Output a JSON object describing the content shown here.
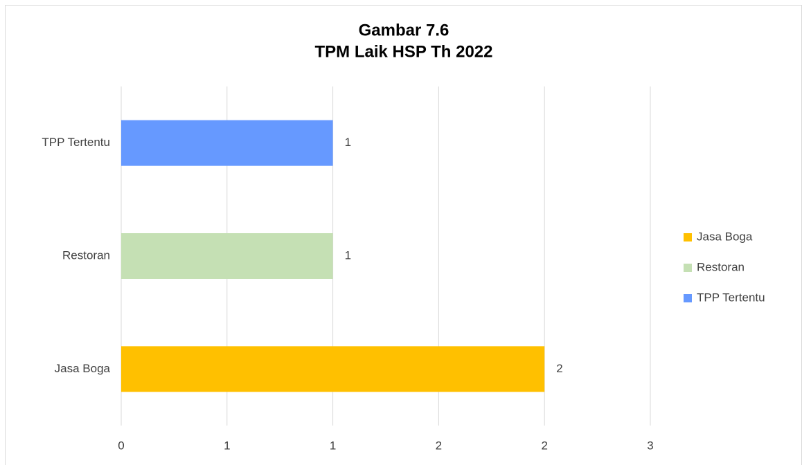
{
  "chart_data": {
    "type": "barh",
    "title": "Gambar 7.6",
    "subtitle": "TPM Laik HSP Th 2022",
    "categories": [
      "Jasa Boga",
      "Restoran",
      "TPP Tertentu"
    ],
    "values": [
      2,
      1,
      1
    ],
    "colors": [
      "#ffc000",
      "#c5e0b4",
      "#6699ff"
    ],
    "xlim": [
      0,
      2.5
    ],
    "xticks": [
      0,
      {
        "value": 0.5,
        "label": "1"
      },
      1,
      {
        "value": 1.5,
        "label": "2"
      },
      2,
      {
        "value": 2.5,
        "label": "3"
      }
    ],
    "grid": true,
    "legend": "right"
  }
}
